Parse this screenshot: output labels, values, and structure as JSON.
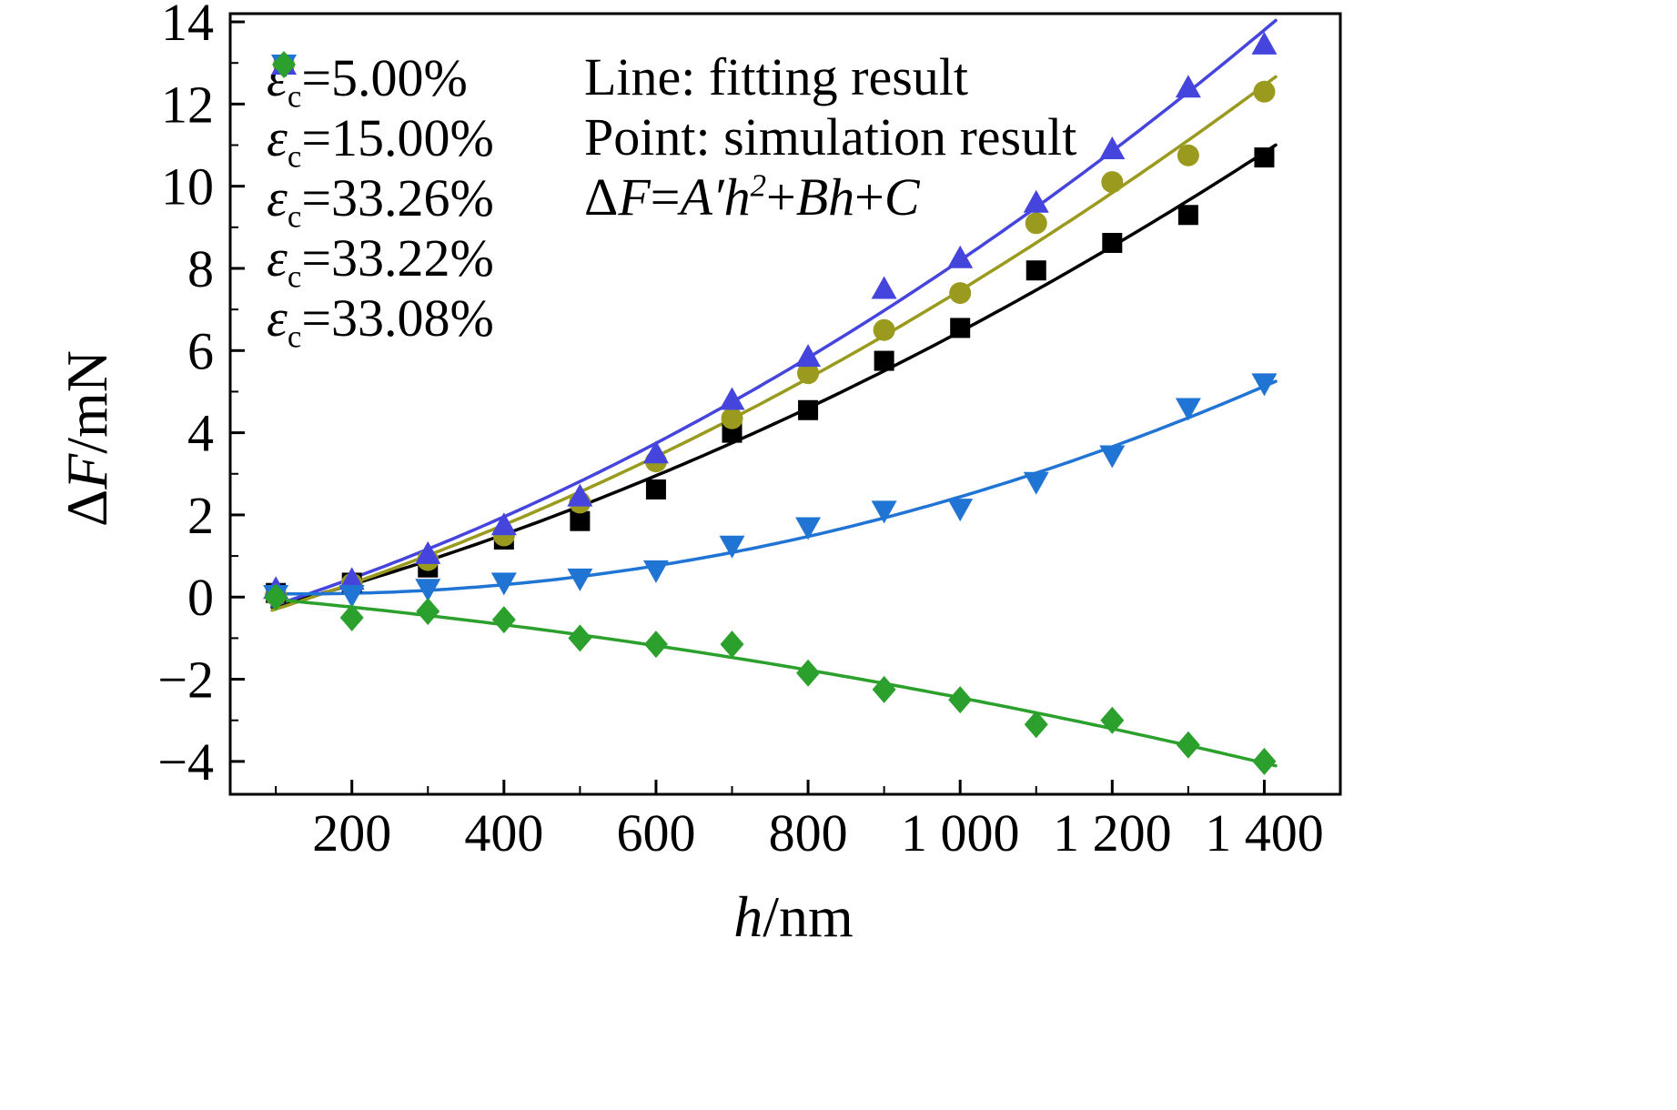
{
  "chart_data": {
    "type": "scatter",
    "title": "",
    "xlabel": "h/nm",
    "ylabel": "ΔF/mN",
    "xlabel_parts": {
      "h": "h",
      "unit": "/nm"
    },
    "ylabel_parts": {
      "delta": "Δ",
      "f": "F",
      "unit": "/mN"
    },
    "grid": false,
    "legend_position": "top-left-inside",
    "xlim": [
      40,
      1500
    ],
    "ylim": [
      -4.8,
      14.2
    ],
    "xticks": {
      "values": [
        200,
        400,
        600,
        800,
        1000,
        1200,
        1400
      ],
      "labels": [
        "200",
        "400",
        "600",
        "800",
        "1 000",
        "1 200",
        "1 400"
      ],
      "minor_values": [
        100,
        300,
        500,
        700,
        900,
        1100,
        1300
      ]
    },
    "yticks": {
      "values": [
        14,
        12,
        10,
        8,
        6,
        4,
        2,
        0,
        -2,
        -4
      ],
      "labels": [
        "14",
        "12",
        "10",
        "8",
        "6",
        "4",
        "2",
        "0",
        "−2",
        "−4"
      ],
      "minor_values": [
        13,
        11,
        9,
        7,
        5,
        3,
        1,
        -1,
        -3
      ]
    },
    "x": [
      100,
      200,
      300,
      400,
      500,
      600,
      700,
      800,
      900,
      1000,
      1100,
      1200,
      1300,
      1400
    ],
    "series": [
      {
        "name": "εc=5.00%",
        "label_parts": {
          "symbol": "ε",
          "sub": "c",
          "value": "=5.00%"
        },
        "marker": "square",
        "color": "#000000",
        "fit": "quadratic",
        "values": [
          0.1,
          0.35,
          0.72,
          1.4,
          1.85,
          2.62,
          4.0,
          4.55,
          5.75,
          6.55,
          7.95,
          8.62,
          9.3,
          10.7
        ]
      },
      {
        "name": "εc=15.00%",
        "label_parts": {
          "symbol": "ε",
          "sub": "c",
          "value": "=15.00%"
        },
        "marker": "circle",
        "color": "#9a9a1e",
        "fit": "quadratic",
        "values": [
          0.05,
          0.32,
          0.9,
          1.5,
          2.3,
          3.3,
          4.35,
          5.45,
          6.5,
          7.4,
          9.1,
          10.1,
          10.75,
          12.3
        ]
      },
      {
        "name": "εc=33.26%",
        "label_parts": {
          "symbol": "ε",
          "sub": "c",
          "value": "=33.26%"
        },
        "marker": "triangle-up",
        "color": "#4545dd",
        "fit": "quadratic",
        "values": [
          0.2,
          0.42,
          1.05,
          1.75,
          2.45,
          3.5,
          4.8,
          5.85,
          7.5,
          8.25,
          9.6,
          10.9,
          12.4,
          13.45
        ]
      },
      {
        "name": "εc=33.22%",
        "label_parts": {
          "symbol": "ε",
          "sub": "c",
          "value": "=33.22%"
        },
        "marker": "triangle-down",
        "color": "#2074d4",
        "fit": "quadratic",
        "values": [
          0.05,
          0.05,
          0.2,
          0.35,
          0.45,
          0.65,
          1.25,
          1.7,
          2.1,
          2.15,
          2.8,
          3.45,
          4.6,
          5.2
        ]
      },
      {
        "name": "εc=33.08%",
        "label_parts": {
          "symbol": "ε",
          "sub": "c",
          "value": "=33.08%"
        },
        "marker": "diamond",
        "color": "#2ca02c",
        "fit": "quadratic",
        "values": [
          0.0,
          -0.5,
          -0.35,
          -0.55,
          -1.0,
          -1.15,
          -1.15,
          -1.85,
          -2.25,
          -2.5,
          -3.1,
          -3.0,
          -3.6,
          -4.0
        ]
      }
    ],
    "annotations": {
      "line1": "Line: fitting result",
      "line2": "Point: simulation result",
      "formula_text": "ΔF=A′h²+Bh+C",
      "formula": {
        "d": "Δ",
        "f": "F",
        "eq": "=",
        "ah": "A′h",
        "sup": "2",
        "plus1": "+",
        "bh": "Bh",
        "plus2": "+",
        "c": "C"
      }
    }
  }
}
